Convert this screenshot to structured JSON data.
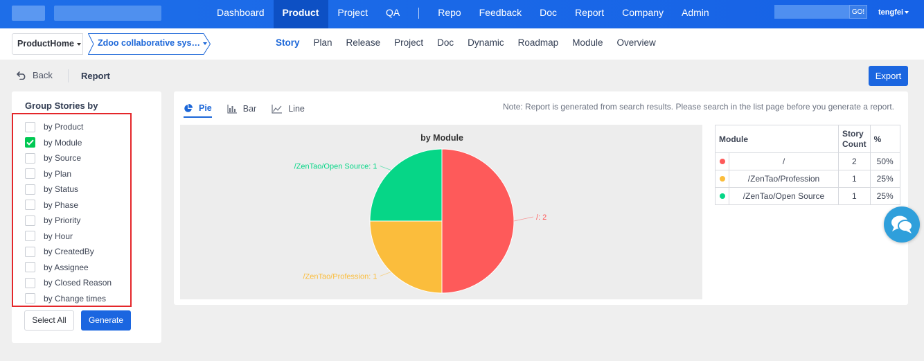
{
  "topnav": {
    "items": [
      {
        "label": "Dashboard"
      },
      {
        "label": "Product"
      },
      {
        "label": "Project"
      },
      {
        "label": "QA"
      },
      {
        "label": "Repo"
      },
      {
        "label": "Feedback"
      },
      {
        "label": "Doc"
      },
      {
        "label": "Report"
      },
      {
        "label": "Company"
      },
      {
        "label": "Admin"
      }
    ],
    "active": "Product",
    "search_go": "GO!",
    "user": "tengfei"
  },
  "subbar": {
    "product_home": "ProductHome",
    "product_name": "Zdoo collaborative sys…",
    "items": [
      "Story",
      "Plan",
      "Release",
      "Project",
      "Doc",
      "Dynamic",
      "Roadmap",
      "Module",
      "Overview"
    ],
    "active": "Story"
  },
  "header": {
    "back": "Back",
    "title": "Report",
    "export": "Export"
  },
  "left_panel": {
    "title": "Group Stories by",
    "options": [
      {
        "label": "by Product",
        "checked": false
      },
      {
        "label": "by Module",
        "checked": true
      },
      {
        "label": "by Source",
        "checked": false
      },
      {
        "label": "by Plan",
        "checked": false
      },
      {
        "label": "by Status",
        "checked": false
      },
      {
        "label": "by Phase",
        "checked": false
      },
      {
        "label": "by Priority",
        "checked": false
      },
      {
        "label": "by Hour",
        "checked": false
      },
      {
        "label": "by CreatedBy",
        "checked": false
      },
      {
        "label": "by Assignee",
        "checked": false
      },
      {
        "label": "by Closed Reason",
        "checked": false
      },
      {
        "label": "by Change times",
        "checked": false
      }
    ],
    "select_all": "Select All",
    "generate": "Generate"
  },
  "report": {
    "tabs": [
      "Pie",
      "Bar",
      "Line"
    ],
    "active_tab": "Pie",
    "note": "Note: Report is generated from search results. Please search in the list page before you generate a report."
  },
  "chart_data": {
    "type": "pie",
    "title": "by Module",
    "slices": [
      {
        "label": "/: 2",
        "name": "/",
        "value": 2,
        "color": "#fe5a5a"
      },
      {
        "label": "/ZenTao/Profession: 1",
        "name": "/ZenTao/Profession",
        "value": 1,
        "color": "#fbbd3c"
      },
      {
        "label": "/ZenTao/Open Source: 1",
        "name": "/ZenTao/Open Source",
        "value": 1,
        "color": "#06d687"
      }
    ]
  },
  "table": {
    "headers": [
      "Module",
      "Story Count",
      "%"
    ],
    "rows": [
      {
        "name": "/",
        "count": "2",
        "pct": "50%",
        "color": "#fe5a5a"
      },
      {
        "name": "/ZenTao/Profession",
        "count": "1",
        "pct": "25%",
        "color": "#fbbd3c"
      },
      {
        "name": "/ZenTao/Open Source",
        "count": "1",
        "pct": "25%",
        "color": "#06d687"
      }
    ]
  }
}
